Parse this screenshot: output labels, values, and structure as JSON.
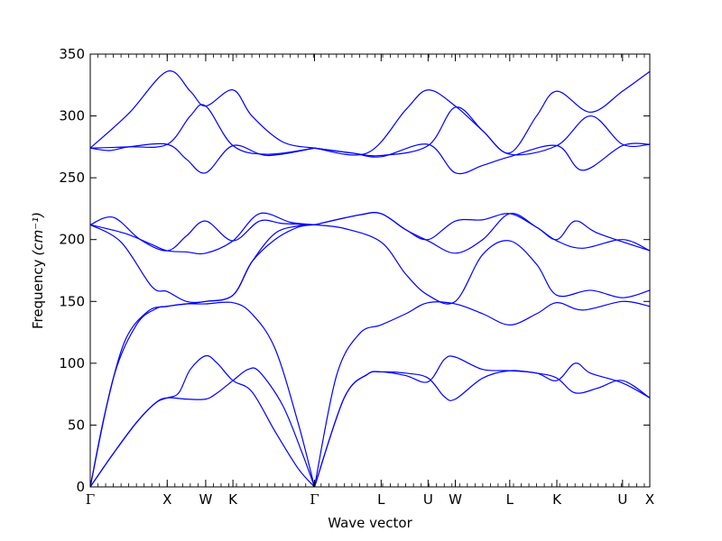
{
  "chart_data": {
    "type": "line",
    "xlabel": "Wave vector",
    "ylabel": "Frequency",
    "ylabel_unit": "(cm⁻¹)",
    "ylim": [
      0,
      350
    ],
    "y_ticks": [
      0,
      50,
      100,
      150,
      200,
      250,
      300,
      350
    ],
    "grid": false,
    "line_color": "#0000ff",
    "high_symmetry_points": [
      {
        "label": "Γ",
        "x": 0.0
      },
      {
        "label": "X",
        "x": 1.0
      },
      {
        "label": "W",
        "x": 1.5
      },
      {
        "label": "K",
        "x": 1.854
      },
      {
        "label": "Γ",
        "x": 2.914
      },
      {
        "label": "L",
        "x": 3.78
      },
      {
        "label": "U",
        "x": 4.39
      },
      {
        "label": "W",
        "x": 4.744
      },
      {
        "label": "L",
        "x": 5.451
      },
      {
        "label": "K",
        "x": 6.063
      },
      {
        "label": "U",
        "x": 6.917
      },
      {
        "label": "X",
        "x": 7.271
      }
    ],
    "xlim": [
      0,
      7.271
    ],
    "minor_ticks_per_unit": 10,
    "branches": [
      {
        "points": [
          [
            0,
            0
          ],
          [
            0.3,
            27
          ],
          [
            0.6,
            52
          ],
          [
            0.85,
            68
          ],
          [
            1.0,
            72
          ],
          [
            1.15,
            76
          ],
          [
            1.3,
            95
          ],
          [
            1.5,
            106
          ],
          [
            1.65,
            100
          ],
          [
            1.854,
            86
          ],
          [
            2.1,
            77
          ],
          [
            2.4,
            45
          ],
          [
            2.7,
            15
          ],
          [
            2.914,
            0
          ]
        ]
      },
      {
        "points": [
          [
            0,
            0
          ],
          [
            0.3,
            27
          ],
          [
            0.6,
            52
          ],
          [
            0.85,
            68
          ],
          [
            1.0,
            72
          ],
          [
            1.25,
            71
          ],
          [
            1.5,
            71
          ],
          [
            1.65,
            76
          ],
          [
            1.854,
            86
          ],
          [
            2.05,
            95
          ],
          [
            2.2,
            93
          ],
          [
            2.5,
            66
          ],
          [
            2.75,
            28
          ],
          [
            2.914,
            0
          ]
        ]
      },
      {
        "points": [
          [
            0,
            0
          ],
          [
            0.2,
            62
          ],
          [
            0.45,
            118
          ],
          [
            0.75,
            142
          ],
          [
            1.0,
            146
          ],
          [
            1.25,
            148
          ],
          [
            1.5,
            150
          ],
          [
            1.854,
            155
          ],
          [
            2.1,
            182
          ],
          [
            2.4,
            200
          ],
          [
            2.7,
            210
          ],
          [
            2.914,
            212
          ]
        ]
      },
      {
        "points": [
          [
            0,
            0
          ],
          [
            0.3,
            88
          ],
          [
            0.6,
            131
          ],
          [
            0.85,
            144
          ],
          [
            1.0,
            146
          ],
          [
            1.25,
            148
          ],
          [
            1.5,
            148
          ],
          [
            1.854,
            149
          ],
          [
            2.1,
            140
          ],
          [
            2.4,
            112
          ],
          [
            2.7,
            52
          ],
          [
            2.914,
            0
          ]
        ]
      },
      {
        "points": [
          [
            0,
            212
          ],
          [
            0.4,
            198
          ],
          [
            0.8,
            162
          ],
          [
            1.0,
            158
          ],
          [
            1.25,
            150
          ],
          [
            1.5,
            150
          ],
          [
            1.854,
            155
          ],
          [
            2.1,
            182
          ],
          [
            2.4,
            205
          ],
          [
            2.7,
            211
          ],
          [
            2.914,
            212
          ]
        ]
      },
      {
        "points": [
          [
            0,
            212
          ],
          [
            0.3,
            218
          ],
          [
            0.65,
            200
          ],
          [
            1.0,
            191
          ],
          [
            1.25,
            203
          ],
          [
            1.5,
            215
          ],
          [
            1.854,
            199
          ],
          [
            2.2,
            215
          ],
          [
            2.5,
            213
          ],
          [
            2.914,
            212
          ]
        ]
      },
      {
        "points": [
          [
            0,
            212
          ],
          [
            0.45,
            205
          ],
          [
            0.8,
            196
          ],
          [
            1.0,
            191
          ],
          [
            1.25,
            190
          ],
          [
            1.5,
            189
          ],
          [
            1.854,
            199
          ],
          [
            2.2,
            221
          ],
          [
            2.6,
            214
          ],
          [
            2.914,
            212
          ]
        ]
      },
      {
        "points": [
          [
            0,
            274
          ],
          [
            0.25,
            272
          ],
          [
            0.5,
            275
          ],
          [
            1.0,
            277
          ],
          [
            1.25,
            265
          ],
          [
            1.5,
            254
          ],
          [
            1.854,
            276
          ],
          [
            2.3,
            268
          ],
          [
            2.914,
            274
          ]
        ]
      },
      {
        "points": [
          [
            0,
            274
          ],
          [
            0.5,
            275
          ],
          [
            1.0,
            277
          ],
          [
            1.3,
            300
          ],
          [
            1.5,
            308
          ],
          [
            1.854,
            276
          ],
          [
            2.3,
            269
          ],
          [
            2.914,
            274
          ]
        ]
      },
      {
        "points": [
          [
            0,
            274
          ],
          [
            0.5,
            302
          ],
          [
            1.0,
            336
          ],
          [
            1.3,
            320
          ],
          [
            1.5,
            308
          ],
          [
            1.854,
            321
          ],
          [
            2.1,
            300
          ],
          [
            2.5,
            279
          ],
          [
            2.914,
            274
          ]
        ]
      },
      {
        "points": [
          [
            2.914,
            0
          ],
          [
            3.3,
            72
          ],
          [
            3.6,
            91
          ],
          [
            3.78,
            93
          ],
          [
            4.1,
            90
          ],
          [
            4.39,
            85
          ],
          [
            4.6,
            103
          ],
          [
            4.744,
            105
          ],
          [
            5.1,
            95
          ],
          [
            5.451,
            94
          ],
          [
            5.8,
            92
          ],
          [
            6.063,
            86
          ],
          [
            6.3,
            100
          ],
          [
            6.5,
            92
          ],
          [
            6.917,
            84
          ],
          [
            7.271,
            72
          ]
        ]
      },
      {
        "points": [
          [
            2.914,
            0
          ],
          [
            3.3,
            72
          ],
          [
            3.6,
            91
          ],
          [
            3.78,
            93
          ],
          [
            4.1,
            92
          ],
          [
            4.39,
            88
          ],
          [
            4.6,
            73
          ],
          [
            4.744,
            71
          ],
          [
            5.1,
            88
          ],
          [
            5.451,
            94
          ],
          [
            5.8,
            92
          ],
          [
            6.063,
            88
          ],
          [
            6.3,
            76
          ],
          [
            6.6,
            80
          ],
          [
            6.917,
            86
          ],
          [
            7.271,
            72
          ]
        ]
      },
      {
        "points": [
          [
            2.914,
            0
          ],
          [
            3.2,
            90
          ],
          [
            3.5,
            124
          ],
          [
            3.78,
            131
          ],
          [
            4.1,
            140
          ],
          [
            4.39,
            149
          ],
          [
            4.744,
            148
          ],
          [
            5.1,
            140
          ],
          [
            5.451,
            131
          ],
          [
            5.8,
            140
          ],
          [
            6.063,
            149
          ],
          [
            6.4,
            143
          ],
          [
            6.917,
            150
          ],
          [
            7.271,
            146
          ]
        ]
      },
      {
        "points": [
          [
            2.914,
            212
          ],
          [
            3.3,
            209
          ],
          [
            3.78,
            198
          ],
          [
            4.1,
            172
          ],
          [
            4.39,
            155
          ],
          [
            4.744,
            150
          ],
          [
            5.1,
            188
          ],
          [
            5.451,
            199
          ],
          [
            5.8,
            180
          ],
          [
            6.063,
            155
          ],
          [
            6.5,
            159
          ],
          [
            6.917,
            153
          ],
          [
            7.271,
            159
          ]
        ]
      },
      {
        "points": [
          [
            2.914,
            212
          ],
          [
            3.5,
            220
          ],
          [
            3.78,
            221
          ],
          [
            4.1,
            208
          ],
          [
            4.39,
            199
          ],
          [
            4.744,
            189
          ],
          [
            5.1,
            200
          ],
          [
            5.451,
            221
          ],
          [
            5.8,
            210
          ],
          [
            6.063,
            199
          ],
          [
            6.4,
            193
          ],
          [
            6.917,
            200
          ],
          [
            7.271,
            191
          ]
        ]
      },
      {
        "points": [
          [
            2.914,
            212
          ],
          [
            3.5,
            220
          ],
          [
            3.78,
            221
          ],
          [
            4.1,
            208
          ],
          [
            4.39,
            200
          ],
          [
            4.744,
            215
          ],
          [
            5.1,
            216
          ],
          [
            5.451,
            221
          ],
          [
            5.8,
            210
          ],
          [
            6.063,
            200
          ],
          [
            6.3,
            215
          ],
          [
            6.6,
            205
          ],
          [
            7.271,
            191
          ]
        ]
      },
      {
        "points": [
          [
            2.914,
            274
          ],
          [
            3.4,
            270
          ],
          [
            3.78,
            267
          ],
          [
            4.39,
            277
          ],
          [
            4.744,
            254
          ],
          [
            5.1,
            260
          ],
          [
            5.451,
            267
          ],
          [
            6.063,
            276
          ],
          [
            6.4,
            256
          ],
          [
            6.917,
            276
          ],
          [
            7.271,
            277
          ]
        ]
      },
      {
        "points": [
          [
            2.914,
            274
          ],
          [
            3.4,
            270
          ],
          [
            3.78,
            268
          ],
          [
            4.39,
            276
          ],
          [
            4.744,
            307
          ],
          [
            5.1,
            288
          ],
          [
            5.451,
            269
          ],
          [
            6.063,
            276
          ],
          [
            6.5,
            300
          ],
          [
            6.917,
            277
          ],
          [
            7.271,
            277
          ]
        ]
      },
      {
        "points": [
          [
            2.914,
            274
          ],
          [
            3.6,
            270
          ],
          [
            4.1,
            305
          ],
          [
            4.39,
            321
          ],
          [
            4.744,
            308
          ],
          [
            5.1,
            288
          ],
          [
            5.451,
            270
          ],
          [
            5.8,
            300
          ],
          [
            6.063,
            320
          ],
          [
            6.5,
            303
          ],
          [
            6.917,
            320
          ],
          [
            7.271,
            336
          ]
        ]
      }
    ]
  }
}
